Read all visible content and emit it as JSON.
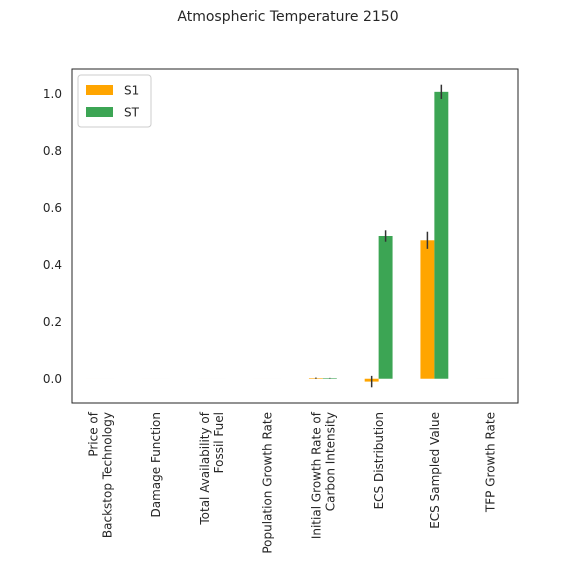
{
  "chart_data": {
    "type": "bar",
    "title": "Atmospheric Temperature 2150",
    "xlabel": "",
    "ylabel": "",
    "ylim": [
      -0.085,
      1.085
    ],
    "yticks": [
      0.0,
      0.2,
      0.4,
      0.6,
      0.8,
      1.0
    ],
    "ytick_labels": [
      "0.0",
      "0.2",
      "0.4",
      "0.6",
      "0.8",
      "1.0"
    ],
    "categories": [
      "Price of\nBackstop Technology",
      "Damage Function",
      "Total Availability of\nFossil Fuel",
      "Population Growth Rate",
      "Initial Growth Rate of\nCarbon Intensity",
      "ECS Distribution",
      "ECS Sampled Value",
      "TFP Growth Rate"
    ],
    "series": [
      {
        "name": "S1",
        "color": "#ffa500",
        "values": [
          0.0,
          0.0,
          0.0,
          0.0,
          0.002,
          -0.01,
          0.485,
          0.0
        ],
        "errors": [
          0.0,
          0.0,
          0.0,
          0.0,
          0.002,
          0.02,
          0.03,
          0.0
        ]
      },
      {
        "name": "ST",
        "color": "#3ca554",
        "values": [
          0.0,
          0.0,
          0.0,
          0.0,
          0.002,
          0.5,
          1.005,
          0.0
        ],
        "errors": [
          0.0,
          0.0,
          0.0,
          0.0,
          0.001,
          0.02,
          0.025,
          0.0
        ]
      }
    ],
    "legend_position": "top-left",
    "grid": false
  }
}
